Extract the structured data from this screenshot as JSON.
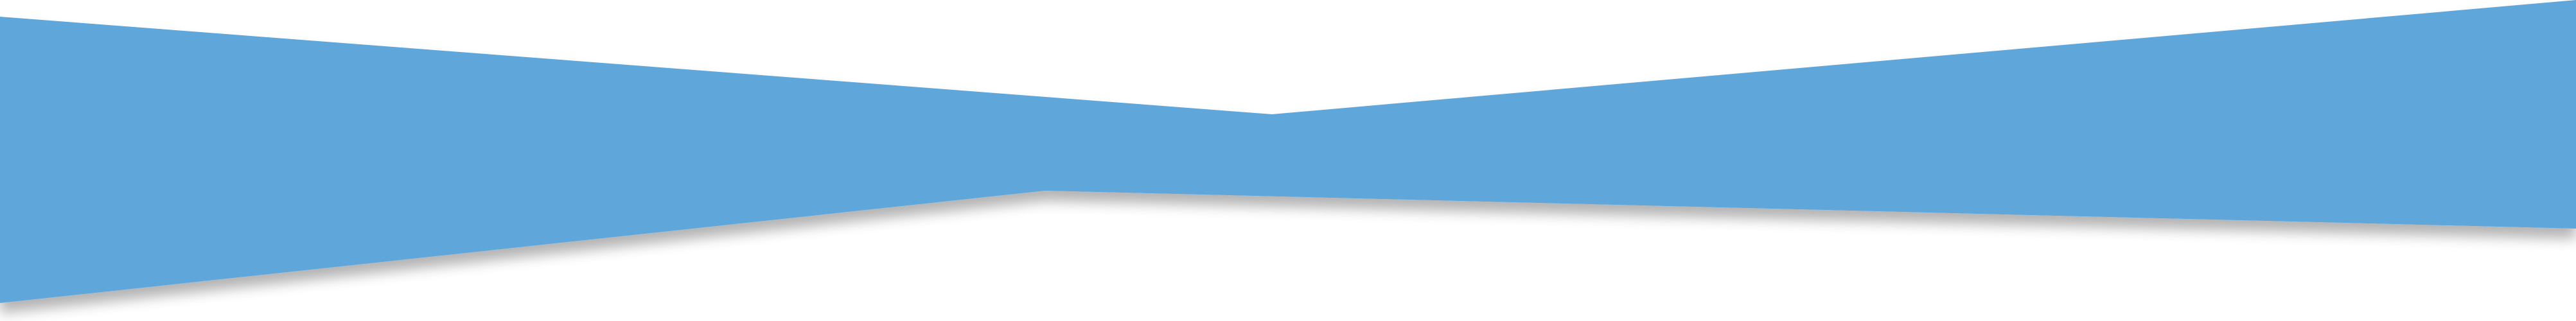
{
  "banner": {
    "shape": "bowtie-divider",
    "colors": {
      "background": "#ffffff",
      "fill": "#5fa7db",
      "shadow": "#000000"
    },
    "shadow_opacity": 0.3
  }
}
